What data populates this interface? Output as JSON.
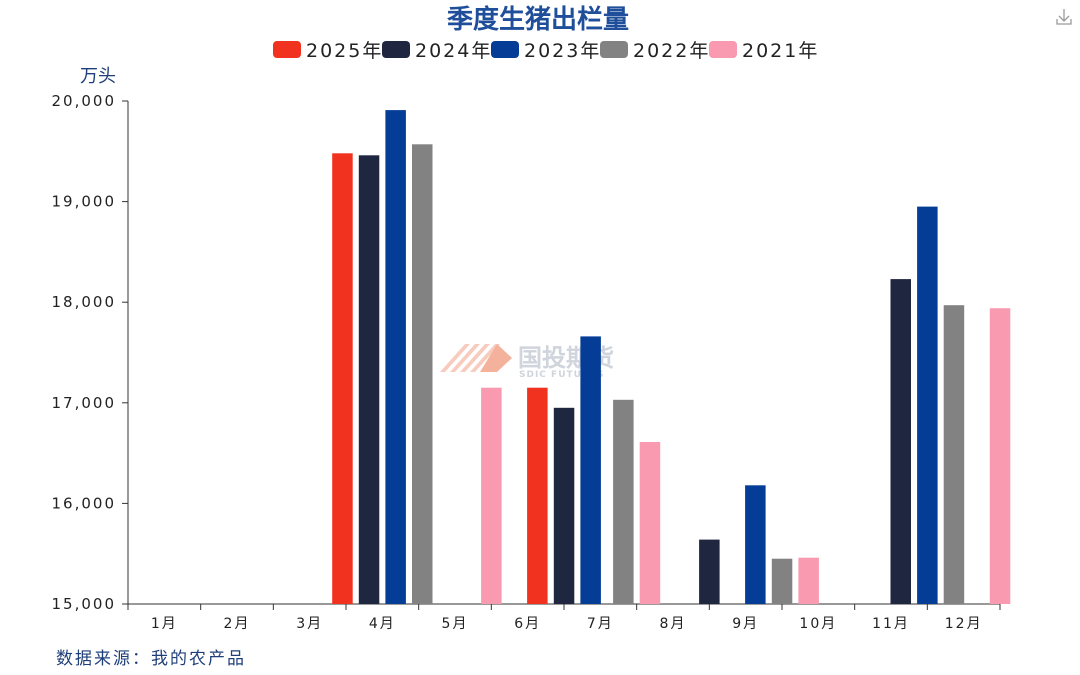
{
  "chart_data": {
    "type": "bar",
    "title": "季度生猪出栏量",
    "ylabel": "万头",
    "ylim": [
      15000,
      20000
    ],
    "yticks": [
      "15,000",
      "16,000",
      "17,000",
      "18,000",
      "19,000",
      "20,000"
    ],
    "categories": [
      "1月",
      "2月",
      "3月",
      "4月",
      "5月",
      "6月",
      "7月",
      "8月",
      "9月",
      "10月",
      "11月",
      "12月"
    ],
    "series": [
      {
        "name": "2025年",
        "color": "#f0321e",
        "values": [
          null,
          null,
          null,
          19480,
          null,
          17150,
          null,
          null,
          null,
          null,
          null,
          null
        ]
      },
      {
        "name": "2024年",
        "color": "#1e2640",
        "values": [
          null,
          null,
          null,
          19460,
          null,
          16950,
          null,
          15640,
          null,
          null,
          18230,
          null
        ]
      },
      {
        "name": "2023年",
        "color": "#053d96",
        "values": [
          null,
          null,
          null,
          19910,
          null,
          17660,
          null,
          null,
          16180,
          null,
          18950,
          null
        ]
      },
      {
        "name": "2022年",
        "color": "#828282",
        "values": [
          null,
          null,
          null,
          19570,
          null,
          null,
          17030,
          null,
          15450,
          null,
          17970,
          null
        ]
      },
      {
        "name": "2021年",
        "color": "#f99ab0",
        "values": [
          null,
          null,
          null,
          null,
          17150,
          null,
          16610,
          null,
          15460,
          null,
          null,
          17940
        ]
      }
    ],
    "legend_position": "top",
    "grid": false
  },
  "watermark": {
    "brand": "国投期货",
    "sub": "SDIC FUTURES"
  },
  "source": "数据来源：我的农产品",
  "icons": {
    "download": "download-icon"
  }
}
